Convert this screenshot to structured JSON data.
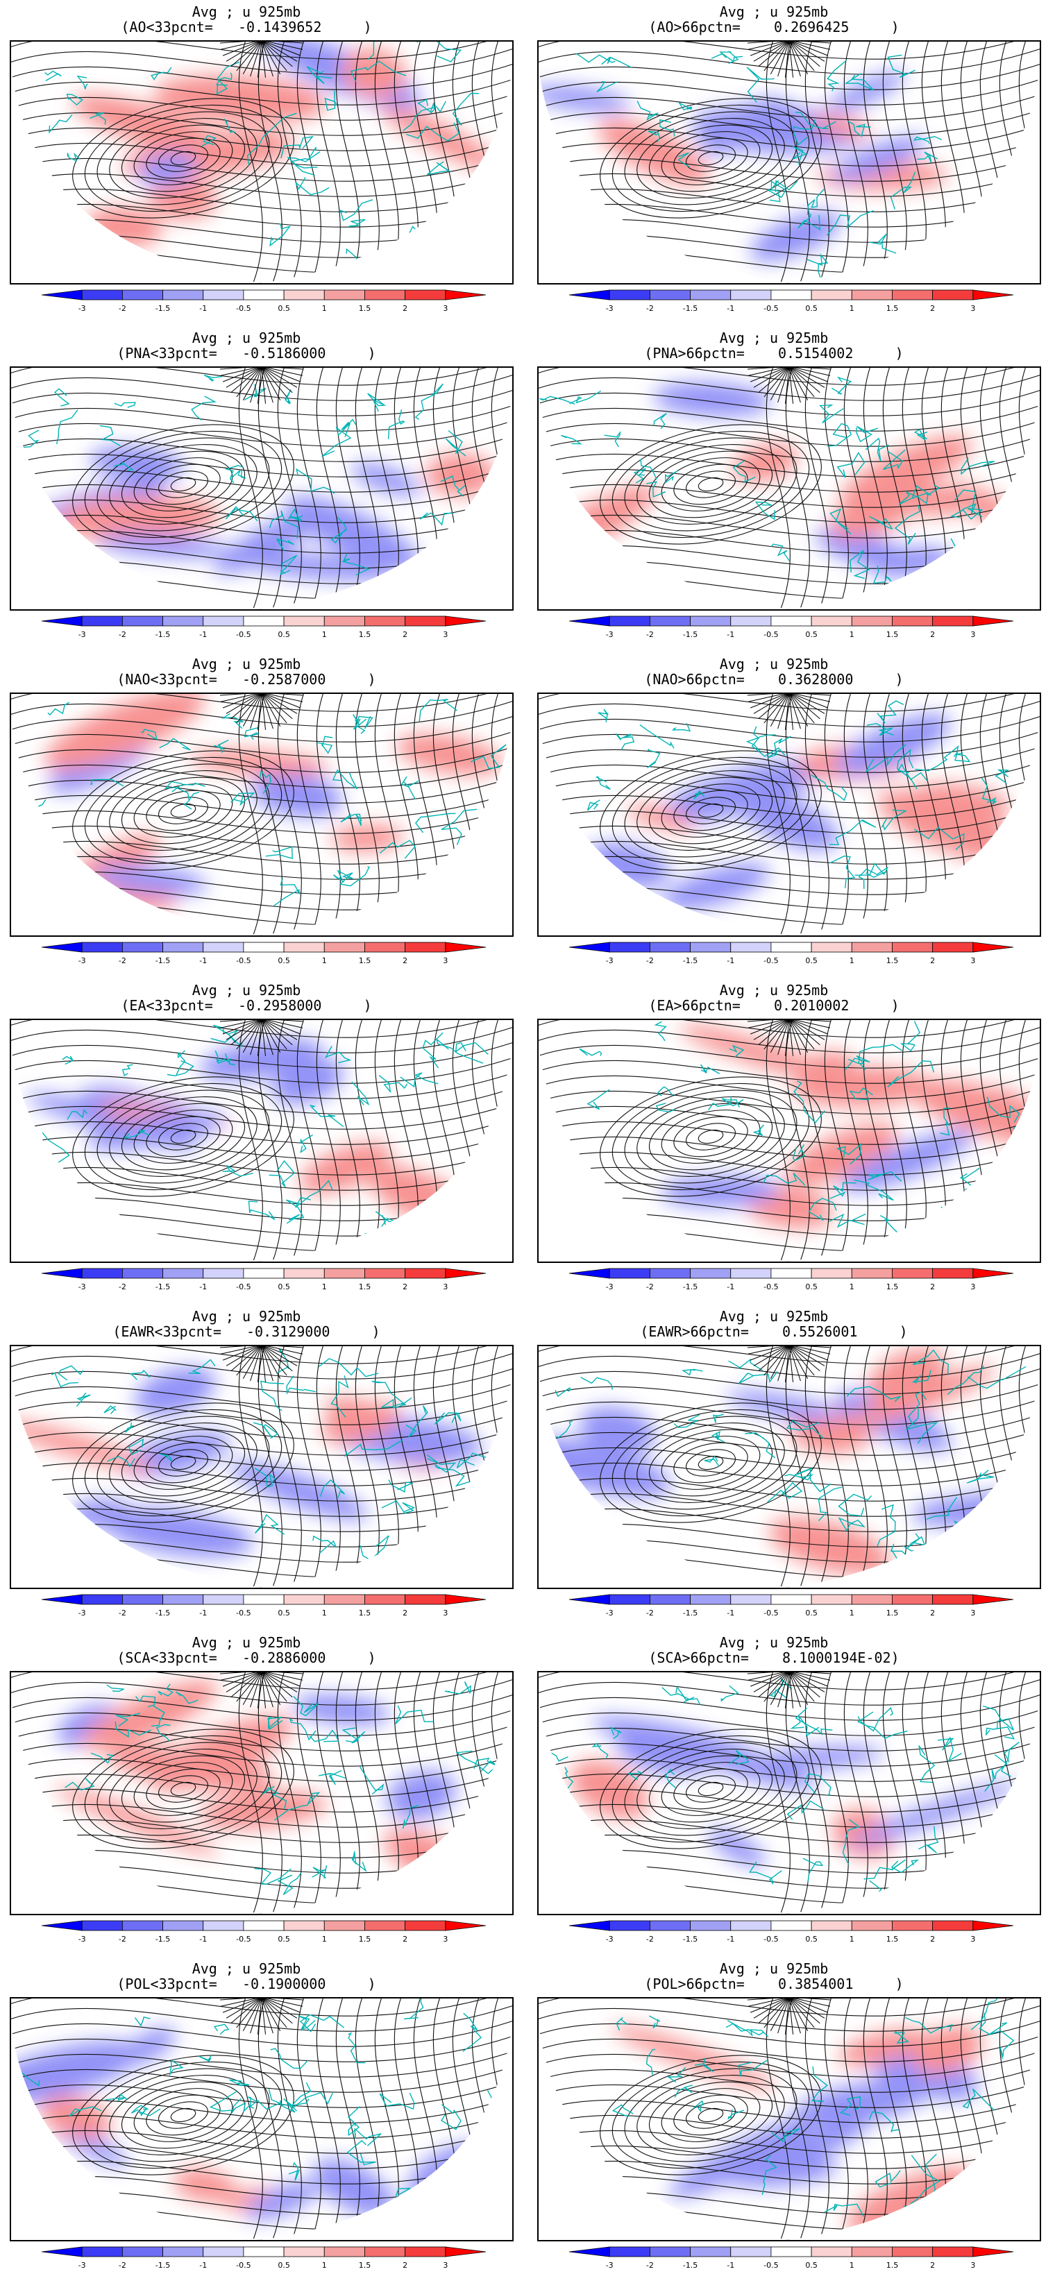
{
  "colorbar": {
    "tick_labels": [
      "-3",
      "-2",
      "-1.5",
      "-1",
      "-0.5",
      "0.5",
      "1",
      "1.5",
      "2",
      "3"
    ],
    "colors": [
      "#0000ff",
      "#3c3cf5",
      "#6e6ef5",
      "#a0a0f5",
      "#d2d2fa",
      "#ffffff",
      "#fad2d2",
      "#f5a0a0",
      "#f56e6e",
      "#f53c3c",
      "#ff0000"
    ]
  },
  "panels": [
    {
      "title": "Avg ; u 925mb",
      "subtitle": "(AO<33pcnt=   -0.1439652     )"
    },
    {
      "title": "Avg ; u 925mb",
      "subtitle": "(AO>66pctn=    0.2696425     )"
    },
    {
      "title": "Avg ; u 925mb",
      "subtitle": "(PNA<33pcnt=   -0.5186000     )"
    },
    {
      "title": "Avg ; u 925mb",
      "subtitle": "(PNA>66pctn=    0.5154002     )"
    },
    {
      "title": "Avg ; u 925mb",
      "subtitle": "(NAO<33pcnt=   -0.2587000     )"
    },
    {
      "title": "Avg ; u 925mb",
      "subtitle": "(NAO>66pctn=    0.3628000     )"
    },
    {
      "title": "Avg ; u 925mb",
      "subtitle": "(EA<33pcnt=   -0.2958000     )"
    },
    {
      "title": "Avg ; u 925mb",
      "subtitle": "(EA>66pctn=    0.2010002     )"
    },
    {
      "title": "Avg ; u 925mb",
      "subtitle": "(EAWR<33pcnt=   -0.3129000     )"
    },
    {
      "title": "Avg ; u 925mb",
      "subtitle": "(EAWR>66pctn=    0.5526001     )"
    },
    {
      "title": "Avg ; u 925mb",
      "subtitle": "(SCA<33pcnt=   -0.2886000     )"
    },
    {
      "title": "Avg ; u 925mb",
      "subtitle": "(SCA>66pctn=    8.1000194E-02)"
    },
    {
      "title": "Avg ; u 925mb",
      "subtitle": "(POL<33pcnt=   -0.1900000     )"
    },
    {
      "title": "Avg ; u 925mb",
      "subtitle": "(POL>66pctn=    0.3854001     )"
    }
  ]
}
